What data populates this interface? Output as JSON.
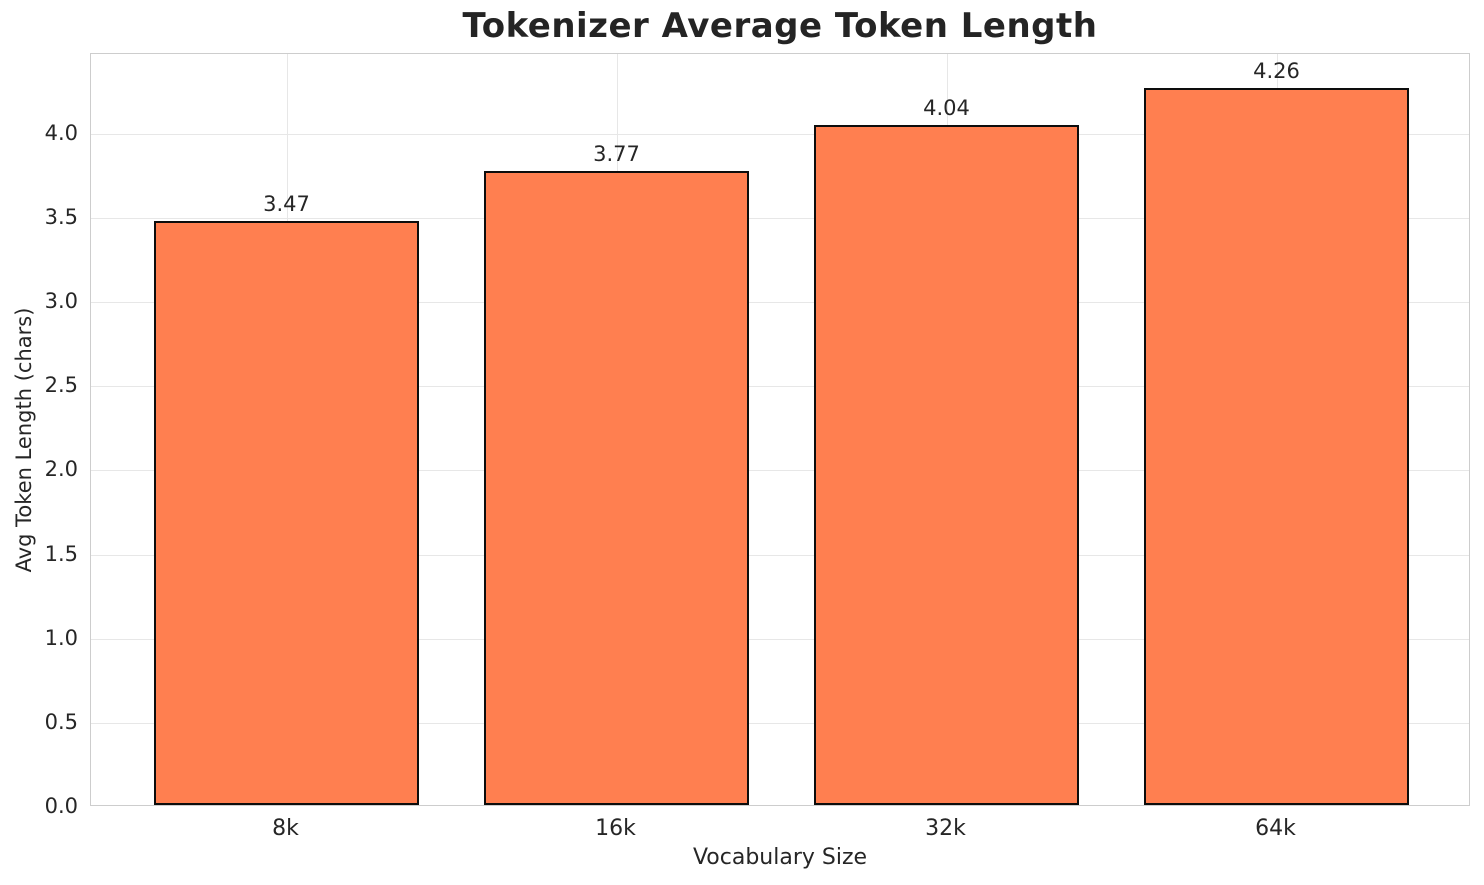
{
  "chart_data": {
    "type": "bar",
    "title": "Tokenizer Average Token Length",
    "xlabel": "Vocabulary Size",
    "ylabel": "Avg Token Length (chars)",
    "categories": [
      "8k",
      "16k",
      "32k",
      "64k"
    ],
    "values": [
      3.47,
      3.77,
      4.04,
      4.26
    ],
    "value_labels": [
      "3.47",
      "3.77",
      "4.04",
      "4.26"
    ],
    "y_ticks": [
      0.0,
      0.5,
      1.0,
      1.5,
      2.0,
      2.5,
      3.0,
      3.5,
      4.0
    ],
    "y_tick_labels": [
      "0.0",
      "0.5",
      "1.0",
      "1.5",
      "2.0",
      "2.5",
      "3.0",
      "3.5",
      "4.0"
    ],
    "ylim": [
      0,
      4.475
    ],
    "grid": true,
    "legend": null,
    "colors": {
      "bar_fill": "#FF7F50",
      "bar_edge": "#0d0d0d",
      "grid_line": "#e7e7e7",
      "spine": "#cdcdcd",
      "text": "#262626"
    }
  }
}
